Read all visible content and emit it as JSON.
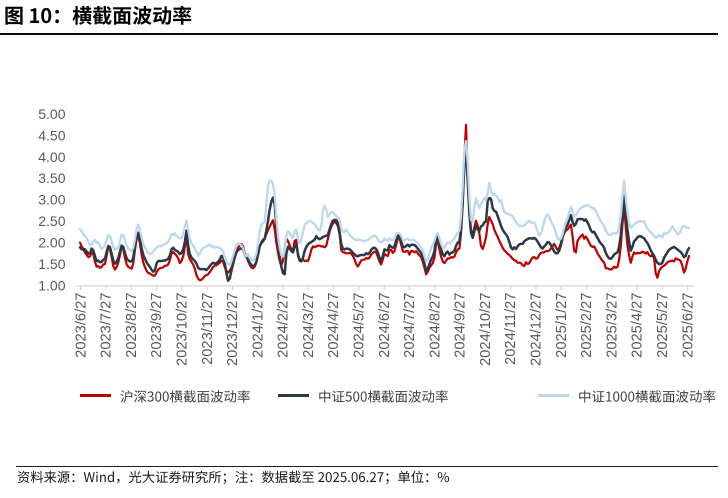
{
  "header": {
    "title": "图 10：横截面波动率"
  },
  "chart_data": {
    "type": "line",
    "title": "图 10：横截面波动率",
    "unit": "%",
    "y_axis": {
      "min": 1.0,
      "max": 5.0,
      "step": 0.5,
      "tick_labels": [
        "5.00",
        "4.50",
        "4.00",
        "3.50",
        "3.00",
        "2.50",
        "2.00",
        "1.50",
        "1.00"
      ]
    },
    "x_axis": {
      "tick_labels": [
        "2023/6/27",
        "2023/7/27",
        "2023/8/27",
        "2023/9/27",
        "2023/10/27",
        "2023/11/27",
        "2023/12/27",
        "2024/1/27",
        "2024/2/27",
        "2024/3/27",
        "2024/4/27",
        "2024/5/27",
        "2024/6/27",
        "2024/7/27",
        "2024/8/27",
        "2024/9/27",
        "2024/10/27",
        "2024/11/27",
        "2024/12/27",
        "2025/1/27",
        "2025/2/27",
        "2025/3/27",
        "2025/4/27",
        "2025/5/27",
        "2025/6/27"
      ],
      "note": "daily series from 2023/6/27 to 2025/6/27; values evenly spaced over this range"
    },
    "legend_position": "bottom",
    "grid": false,
    "series": [
      {
        "name": "沪深300横截面波动率",
        "color": "#C00000",
        "values": [
          2.0,
          1.91,
          1.84,
          1.77,
          1.71,
          1.66,
          1.68,
          1.77,
          1.73,
          1.55,
          1.44,
          1.45,
          1.41,
          1.43,
          1.49,
          1.5,
          1.69,
          1.9,
          1.85,
          1.67,
          1.45,
          1.37,
          1.43,
          1.54,
          1.7,
          1.89,
          1.84,
          1.65,
          1.49,
          1.43,
          1.41,
          1.39,
          1.51,
          1.82,
          2.08,
          2.17,
          1.98,
          1.72,
          1.54,
          1.43,
          1.34,
          1.29,
          1.28,
          1.25,
          1.23,
          1.23,
          1.3,
          1.37,
          1.4,
          1.41,
          1.42,
          1.46,
          1.46,
          1.49,
          1.59,
          1.74,
          1.78,
          1.74,
          1.7,
          1.63,
          1.52,
          1.57,
          1.68,
          1.9,
          2.15,
          1.73,
          1.61,
          1.55,
          1.49,
          1.39,
          1.24,
          1.16,
          1.12,
          1.13,
          1.17,
          1.22,
          1.24,
          1.26,
          1.31,
          1.37,
          1.43,
          1.46,
          1.47,
          1.5,
          1.53,
          1.58,
          1.56,
          1.43,
          1.34,
          1.3,
          1.35,
          1.41,
          1.52,
          1.65,
          1.78,
          1.88,
          1.94,
          1.97,
          1.91,
          1.76,
          1.69,
          1.56,
          1.48,
          1.42,
          1.4,
          1.44,
          1.54,
          1.72,
          1.91,
          2.01,
          2.07,
          2.09,
          2.2,
          2.29,
          2.37,
          2.45,
          2.52,
          2.31,
          2.01,
          1.77,
          1.57,
          1.46,
          1.58,
          1.88,
          2.09,
          2.04,
          1.93,
          1.85,
          1.8,
          2.04,
          2.06,
          1.68,
          1.61,
          1.6,
          1.6,
          1.57,
          1.58,
          1.57,
          1.68,
          1.83,
          1.91,
          1.89,
          1.91,
          1.93,
          1.93,
          1.91,
          1.91,
          1.89,
          1.93,
          2.09,
          2.25,
          2.37,
          2.45,
          2.48,
          2.46,
          2.38,
          2.19,
          1.83,
          1.77,
          1.77,
          1.75,
          1.75,
          1.76,
          1.74,
          1.69,
          1.61,
          1.5,
          1.44,
          1.51,
          1.58,
          1.6,
          1.6,
          1.64,
          1.62,
          1.65,
          1.72,
          1.76,
          1.79,
          1.77,
          1.67,
          1.56,
          1.49,
          1.61,
          1.74,
          1.7,
          1.69,
          1.83,
          1.83,
          1.76,
          1.8,
          1.95,
          2.08,
          2.11,
          1.96,
          1.8,
          1.78,
          1.8,
          1.8,
          1.72,
          1.8,
          1.8,
          1.77,
          1.8,
          1.75,
          1.7,
          1.66,
          1.55,
          1.42,
          1.26,
          1.32,
          1.41,
          1.47,
          1.52,
          1.64,
          1.95,
          2.06,
          1.85,
          1.67,
          1.56,
          1.52,
          1.58,
          1.63,
          1.63,
          1.66,
          1.65,
          1.67,
          1.77,
          1.84,
          1.86,
          2.22,
          2.86,
          4.01,
          4.75,
          3.57,
          2.74,
          2.29,
          2.2,
          2.36,
          2.51,
          2.39,
          2.22,
          1.92,
          1.85,
          1.97,
          2.12,
          2.43,
          2.6,
          2.51,
          2.43,
          2.3,
          2.21,
          2.14,
          2.04,
          1.96,
          1.88,
          1.82,
          1.78,
          1.74,
          1.71,
          1.67,
          1.62,
          1.59,
          1.57,
          1.53,
          1.53,
          1.52,
          1.47,
          1.45,
          1.54,
          1.5,
          1.52,
          1.59,
          1.65,
          1.66,
          1.62,
          1.64,
          1.71,
          1.76,
          1.77,
          1.77,
          1.8,
          1.8,
          1.81,
          1.86,
          1.92,
          1.97,
          1.89,
          1.83,
          1.87,
          1.99,
          2.14,
          2.22,
          2.28,
          2.31,
          2.36,
          2.42,
          2.16,
          1.81,
          1.77,
          2.04,
          2.1,
          2.15,
          2.19,
          2.09,
          2.14,
          2.08,
          2.0,
          1.93,
          1.9,
          1.91,
          1.84,
          1.75,
          1.69,
          1.63,
          1.57,
          1.54,
          1.4,
          1.4,
          1.38,
          1.37,
          1.39,
          1.44,
          1.41,
          1.43,
          1.6,
          1.92,
          2.41,
          2.85,
          2.36,
          1.94,
          1.7,
          1.53,
          1.67,
          1.77,
          1.74,
          1.76,
          1.75,
          1.76,
          1.79,
          1.77,
          1.74,
          1.78,
          1.71,
          1.68,
          1.72,
          1.63,
          1.29,
          1.18,
          1.33,
          1.4,
          1.44,
          1.46,
          1.49,
          1.54,
          1.56,
          1.57,
          1.58,
          1.56,
          1.63,
          1.61,
          1.6,
          1.57,
          1.46,
          1.3,
          1.39,
          1.56,
          1.69
        ]
      },
      {
        "name": "中证500横截面波动率",
        "color": "#2B3947",
        "values": [
          1.89,
          1.84,
          1.85,
          1.84,
          1.79,
          1.74,
          1.76,
          1.86,
          1.82,
          1.68,
          1.57,
          1.58,
          1.54,
          1.55,
          1.6,
          1.62,
          1.78,
          1.92,
          1.89,
          1.74,
          1.58,
          1.51,
          1.55,
          1.64,
          1.78,
          1.93,
          1.9,
          1.76,
          1.64,
          1.58,
          1.56,
          1.56,
          1.64,
          1.9,
          2.15,
          2.23,
          2.09,
          1.87,
          1.72,
          1.62,
          1.54,
          1.48,
          1.43,
          1.37,
          1.32,
          1.35,
          1.51,
          1.57,
          1.57,
          1.57,
          1.58,
          1.58,
          1.6,
          1.62,
          1.7,
          1.84,
          1.88,
          1.83,
          1.81,
          1.78,
          1.73,
          1.76,
          1.84,
          2.01,
          2.28,
          1.92,
          1.73,
          1.65,
          1.61,
          1.57,
          1.51,
          1.41,
          1.38,
          1.38,
          1.38,
          1.38,
          1.36,
          1.4,
          1.45,
          1.5,
          1.53,
          1.51,
          1.52,
          1.55,
          1.6,
          1.69,
          1.67,
          1.5,
          1.29,
          1.11,
          1.16,
          1.34,
          1.5,
          1.65,
          1.77,
          1.83,
          1.85,
          1.87,
          1.83,
          1.72,
          1.66,
          1.6,
          1.53,
          1.48,
          1.45,
          1.47,
          1.55,
          1.72,
          1.91,
          1.99,
          2.03,
          2.09,
          2.29,
          2.51,
          2.77,
          2.96,
          3.05,
          2.89,
          2.39,
          2.0,
          1.69,
          1.44,
          1.29,
          1.26,
          1.73,
          1.9,
          1.86,
          1.81,
          1.77,
          1.91,
          1.95,
          1.73,
          1.58,
          1.56,
          1.65,
          1.8,
          1.9,
          1.96,
          1.99,
          2.01,
          2.04,
          2.07,
          2.15,
          2.1,
          2.08,
          2.1,
          2.13,
          2.15,
          2.16,
          2.18,
          2.31,
          2.43,
          2.51,
          2.53,
          2.53,
          2.45,
          2.25,
          1.97,
          1.86,
          1.84,
          1.86,
          1.86,
          1.84,
          1.81,
          1.76,
          1.73,
          1.69,
          1.68,
          1.7,
          1.71,
          1.71,
          1.71,
          1.75,
          1.73,
          1.76,
          1.83,
          1.87,
          1.88,
          1.85,
          1.77,
          1.65,
          1.57,
          1.69,
          1.84,
          1.82,
          1.82,
          1.94,
          1.9,
          1.88,
          1.91,
          2.05,
          2.17,
          2.13,
          2.03,
          1.91,
          1.89,
          1.92,
          1.95,
          1.91,
          1.95,
          1.95,
          1.94,
          1.91,
          1.86,
          1.81,
          1.76,
          1.65,
          1.51,
          1.34,
          1.39,
          1.5,
          1.6,
          1.68,
          1.8,
          2.06,
          2.17,
          2.0,
          1.84,
          1.73,
          1.68,
          1.76,
          1.79,
          1.72,
          1.76,
          1.77,
          1.81,
          1.92,
          2.0,
          2.02,
          2.33,
          2.97,
          3.81,
          4.15,
          3.44,
          2.67,
          2.23,
          2.11,
          2.27,
          2.39,
          2.31,
          2.27,
          2.38,
          2.4,
          2.47,
          2.49,
          2.97,
          3.04,
          3.02,
          2.8,
          2.74,
          2.72,
          2.62,
          2.51,
          2.39,
          2.3,
          2.24,
          2.19,
          2.13,
          2.01,
          1.89,
          1.84,
          1.89,
          1.85,
          1.91,
          1.96,
          1.97,
          1.97,
          2.03,
          2.06,
          2.08,
          2.1,
          2.1,
          2.09,
          2.11,
          2.08,
          2.02,
          1.96,
          1.89,
          1.86,
          1.91,
          1.95,
          2.01,
          2.0,
          1.94,
          1.87,
          1.79,
          1.75,
          1.75,
          1.81,
          1.94,
          2.11,
          2.25,
          2.36,
          2.41,
          2.52,
          2.64,
          2.49,
          2.39,
          2.44,
          2.54,
          2.55,
          2.55,
          2.55,
          2.51,
          2.54,
          2.47,
          2.39,
          2.29,
          2.24,
          2.25,
          2.18,
          2.11,
          2.04,
          1.98,
          1.94,
          1.88,
          1.76,
          1.68,
          1.63,
          1.62,
          1.66,
          1.72,
          1.75,
          1.77,
          1.9,
          2.18,
          2.64,
          3.1,
          2.67,
          2.31,
          2.02,
          1.81,
          1.9,
          2.03,
          2.07,
          2.12,
          2.15,
          2.15,
          2.12,
          2.1,
          2.04,
          1.99,
          1.91,
          1.82,
          1.75,
          1.69,
          1.6,
          1.53,
          1.5,
          1.5,
          1.53,
          1.64,
          1.71,
          1.77,
          1.83,
          1.86,
          1.88,
          1.9,
          1.87,
          1.84,
          1.81,
          1.78,
          1.73,
          1.66,
          1.69,
          1.8,
          1.87
        ]
      },
      {
        "name": "中证1000横截面波动率",
        "color": "#BDD7EE",
        "values": [
          2.31,
          2.26,
          2.2,
          2.15,
          2.11,
          2.02,
          1.94,
          1.95,
          2.03,
          2.07,
          1.99,
          2.01,
          1.92,
          1.85,
          1.88,
          1.94,
          2.06,
          2.18,
          2.15,
          2.04,
          1.9,
          1.83,
          1.85,
          1.89,
          2.01,
          2.19,
          2.17,
          2.06,
          1.94,
          1.86,
          1.83,
          1.8,
          1.87,
          2.07,
          2.31,
          2.42,
          2.3,
          2.12,
          1.98,
          1.89,
          1.82,
          1.76,
          1.73,
          1.75,
          1.79,
          1.84,
          1.88,
          1.91,
          1.91,
          1.92,
          1.94,
          1.96,
          1.98,
          2.02,
          2.1,
          2.2,
          2.18,
          2.22,
          2.15,
          2.12,
          2.1,
          2.1,
          2.22,
          2.38,
          2.52,
          2.29,
          2.08,
          1.99,
          1.93,
          1.86,
          1.78,
          1.69,
          1.75,
          1.83,
          1.87,
          1.89,
          1.91,
          1.93,
          1.95,
          1.91,
          1.91,
          1.88,
          1.9,
          1.89,
          1.87,
          1.85,
          1.79,
          1.64,
          1.55,
          1.5,
          1.48,
          1.56,
          1.7,
          1.83,
          1.96,
          1.98,
          1.96,
          1.94,
          1.86,
          1.72,
          1.68,
          1.73,
          1.65,
          1.59,
          1.57,
          1.63,
          1.75,
          1.99,
          2.26,
          2.43,
          2.44,
          2.48,
          2.92,
          3.32,
          3.45,
          3.44,
          3.36,
          3.13,
          2.59,
          2.16,
          1.88,
          1.71,
          1.67,
          1.85,
          2.16,
          2.27,
          2.22,
          2.15,
          2.11,
          2.26,
          2.3,
          2.08,
          1.98,
          2.06,
          2.25,
          2.4,
          2.46,
          2.49,
          2.51,
          2.49,
          2.46,
          2.43,
          2.37,
          2.3,
          2.28,
          2.39,
          2.75,
          2.86,
          2.77,
          2.6,
          2.67,
          2.71,
          2.71,
          2.66,
          2.62,
          2.59,
          2.52,
          2.33,
          2.25,
          2.25,
          2.31,
          2.24,
          2.18,
          2.14,
          2.1,
          2.07,
          2.06,
          2.06,
          2.07,
          2.06,
          2.04,
          2.03,
          2.05,
          2.06,
          2.09,
          2.13,
          2.15,
          2.16,
          2.14,
          2.07,
          2.02,
          2.0,
          2.03,
          2.09,
          2.06,
          2.04,
          2.1,
          2.06,
          2.06,
          2.09,
          2.19,
          2.23,
          2.22,
          2.16,
          2.07,
          2.05,
          2.08,
          2.09,
          2.05,
          2.06,
          2.06,
          2.05,
          2.02,
          1.98,
          1.93,
          1.88,
          1.82,
          1.69,
          1.56,
          1.6,
          1.75,
          1.87,
          1.95,
          2.04,
          2.18,
          2.22,
          2.11,
          1.97,
          1.89,
          1.87,
          1.95,
          2.0,
          1.98,
          2.02,
          2.05,
          2.09,
          2.17,
          2.23,
          2.28,
          2.59,
          3.32,
          4.15,
          4.37,
          3.87,
          3.05,
          2.53,
          2.49,
          2.82,
          3.03,
          2.91,
          2.81,
          2.9,
          2.97,
          3.04,
          2.99,
          3.17,
          3.4,
          3.23,
          3.11,
          3.14,
          3.1,
          3.06,
          2.95,
          3.0,
          2.84,
          2.71,
          2.69,
          2.68,
          2.65,
          2.64,
          2.62,
          2.54,
          2.47,
          2.43,
          2.39,
          2.38,
          2.39,
          2.4,
          2.44,
          2.48,
          2.51,
          2.48,
          2.45,
          2.47,
          2.37,
          2.27,
          2.17,
          2.2,
          2.34,
          2.49,
          2.61,
          2.66,
          2.61,
          2.51,
          2.42,
          2.35,
          2.22,
          2.11,
          2.07,
          2.09,
          2.19,
          2.36,
          2.48,
          2.55,
          2.7,
          2.84,
          2.72,
          2.61,
          2.64,
          2.71,
          2.77,
          2.8,
          2.83,
          2.85,
          2.87,
          2.87,
          2.86,
          2.83,
          2.8,
          2.81,
          2.74,
          2.65,
          2.57,
          2.5,
          2.44,
          2.39,
          2.27,
          2.22,
          2.18,
          2.18,
          2.21,
          2.23,
          2.2,
          2.24,
          2.37,
          2.63,
          3.06,
          3.44,
          3.04,
          2.71,
          2.45,
          2.34,
          2.39,
          2.41,
          2.46,
          2.48,
          2.5,
          2.5,
          2.49,
          2.5,
          2.4,
          2.33,
          2.28,
          2.24,
          2.2,
          2.16,
          2.11,
          2.14,
          2.17,
          2.15,
          2.12,
          2.23,
          2.21,
          2.22,
          2.25,
          2.31,
          2.38,
          2.31,
          2.27,
          2.19,
          2.2,
          2.27,
          2.37,
          2.39,
          2.36,
          2.35,
          2.34
        ]
      }
    ]
  },
  "footer": {
    "source_note": "资料来源：Wind，光大证券研究所；注：数据截至 2025.06.27；单位：%"
  }
}
